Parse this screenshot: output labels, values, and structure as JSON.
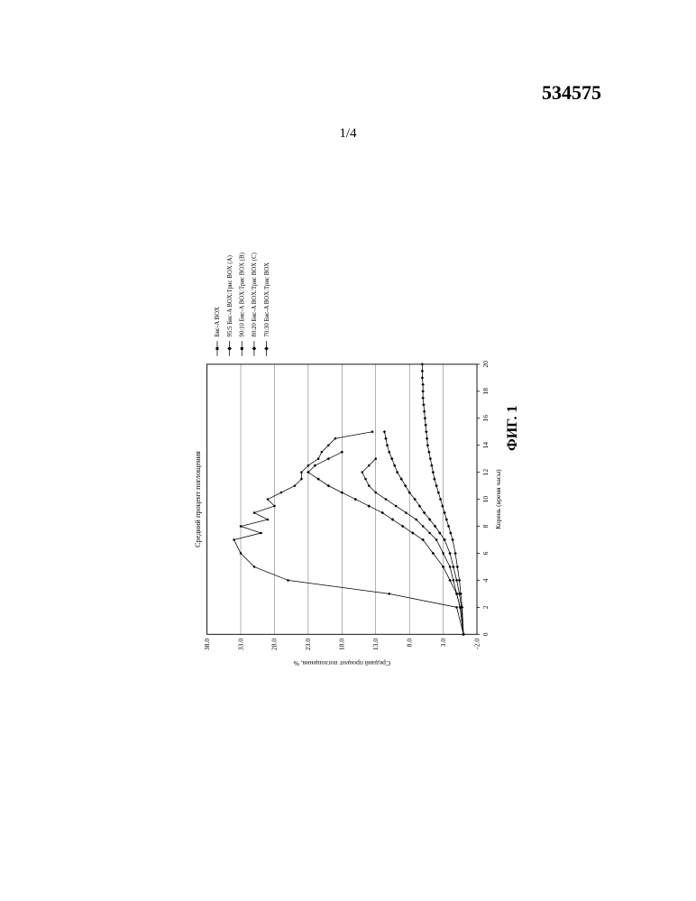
{
  "doc_number": "534575",
  "page_indicator": "1/4",
  "figure_label": "ФИГ. 1",
  "chart": {
    "type": "line",
    "title": "Средний процент поглощения",
    "title_fontsize": 11,
    "xlabel": "Корень (время часы)",
    "ylabel": "Средний процент поглощения, %",
    "label_fontsize": 10,
    "xlim": [
      0,
      20
    ],
    "ylim": [
      -2.0,
      38.0
    ],
    "xtick_step": 2,
    "yticks": [
      -2.0,
      3.0,
      8.0,
      13.0,
      18.0,
      23.0,
      28.0,
      33.0,
      38.0
    ],
    "background_color": "#ffffff",
    "grid_color": "#000000",
    "grid_width": 0.4,
    "axis_color": "#000000",
    "axis_width": 1.2,
    "marker_size": 3,
    "line_width": 1,
    "series": [
      {
        "name": "Бис-A BOX",
        "marker": "square",
        "color": "#000000",
        "x": [
          0,
          2,
          3,
          4,
          5,
          6,
          7,
          7.5,
          8,
          8.5,
          9,
          9.5,
          10,
          10.5,
          11,
          11.5,
          12,
          12.5,
          13,
          13.5,
          14,
          14.5,
          15
        ],
        "y": [
          0,
          1,
          11,
          26,
          31,
          33,
          34,
          30,
          33,
          29,
          31,
          28,
          29,
          27,
          25,
          24,
          24,
          23,
          21.5,
          21,
          20,
          19,
          13.5
        ]
      },
      {
        "name": "95:5 Бис-A BOX:Трис BOX (A)",
        "marker": "diamond",
        "color": "#000000",
        "x": [
          0,
          2,
          3,
          4,
          5,
          6,
          7,
          7.5,
          8,
          8.5,
          9,
          9.5,
          10,
          10.5,
          11,
          11.5,
          12,
          12.5,
          13,
          13.5
        ],
        "y": [
          0,
          0.5,
          1,
          2,
          3,
          4.5,
          6,
          7.5,
          9,
          10.5,
          12,
          14,
          16,
          18,
          20,
          21.5,
          23,
          22,
          20,
          18
        ]
      },
      {
        "name": "90:10 Бис-A BOX:Трис BOX (B)",
        "marker": "square",
        "color": "#000000",
        "x": [
          0,
          2,
          3,
          4,
          5,
          6,
          7,
          7.5,
          8,
          8.5,
          9,
          9.5,
          10,
          10.5,
          11,
          11.5,
          12,
          12.5,
          13
        ],
        "y": [
          0,
          0.5,
          1,
          1.5,
          2,
          3,
          4,
          5,
          6,
          7,
          8.5,
          10,
          11.5,
          13,
          14,
          14.5,
          15,
          14,
          13
        ]
      },
      {
        "name": "80:20 Бис-A BOX:Трис BOX (C)",
        "marker": "diamond",
        "color": "#000000",
        "x": [
          0,
          2,
          3,
          4,
          5,
          6,
          7,
          7.5,
          8,
          8.5,
          9,
          9.5,
          10,
          10.5,
          11,
          11.5,
          12,
          12.5,
          13,
          13.5,
          14,
          14.5,
          15
        ],
        "y": [
          0,
          0.3,
          0.6,
          1,
          1.5,
          2,
          2.8,
          3.5,
          4.2,
          5,
          5.8,
          6.5,
          7.2,
          8,
          8.6,
          9.2,
          9.8,
          10.2,
          10.6,
          11,
          11.3,
          11.5,
          11.7
        ]
      },
      {
        "name": "70:30 Бис-A BOX:Трис BOX",
        "marker": "diamond",
        "color": "#000000",
        "x": [
          0,
          2,
          3,
          4,
          5,
          6,
          7,
          7.5,
          8,
          8.5,
          9,
          9.5,
          10,
          10.5,
          11,
          11.5,
          12,
          12.5,
          13,
          13.5,
          14,
          14.5,
          15,
          15.5,
          16,
          16.5,
          17,
          17.5,
          18,
          18.5,
          19,
          19.5,
          20
        ],
        "y": [
          0,
          0.2,
          0.4,
          0.6,
          0.9,
          1.2,
          1.6,
          1.9,
          2.2,
          2.5,
          2.8,
          3.1,
          3.4,
          3.7,
          4,
          4.3,
          4.5,
          4.7,
          4.9,
          5.1,
          5.3,
          5.4,
          5.5,
          5.6,
          5.7,
          5.8,
          5.9,
          6,
          6,
          6,
          6.1,
          6.1,
          6.1
        ]
      }
    ],
    "legend": {
      "position": "right",
      "fontsize": 9,
      "marker_only": true
    }
  }
}
